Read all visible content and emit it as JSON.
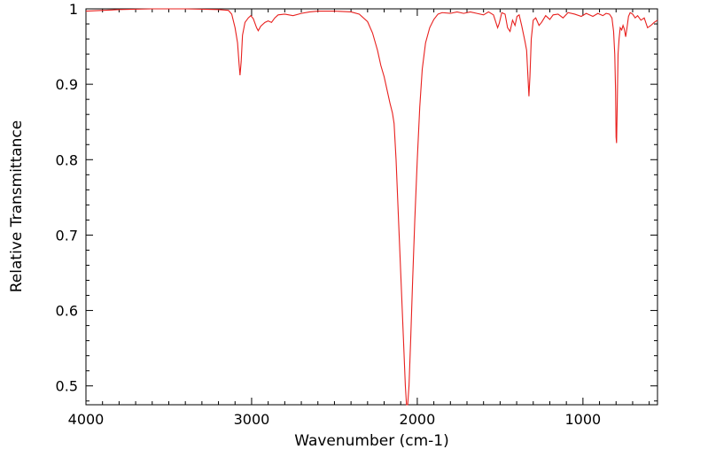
{
  "chart_data": {
    "type": "line",
    "title": "",
    "xlabel": "Wavenumber (cm-1)",
    "ylabel": "Relative Transmittance",
    "xlim": [
      4000,
      550
    ],
    "ylim": [
      0.475,
      1.0
    ],
    "x_reversed": true,
    "grid": false,
    "legend": "none",
    "x_ticks": [
      4000,
      3000,
      2000,
      1000
    ],
    "x_tick_labels": [
      "4000",
      "3000",
      "2000",
      "1000"
    ],
    "y_ticks": [
      0.5,
      0.6,
      0.7,
      0.8,
      0.9,
      1.0
    ],
    "y_tick_labels": [
      "0.5",
      "0.6",
      "0.7",
      "0.8",
      "0.9",
      "1"
    ],
    "series": [
      {
        "color": "#e8201e",
        "points": [
          [
            4000,
            0.997
          ],
          [
            3800,
            0.999
          ],
          [
            3600,
            1.0
          ],
          [
            3400,
            1.0
          ],
          [
            3200,
            0.999
          ],
          [
            3140,
            0.998
          ],
          [
            3120,
            0.993
          ],
          [
            3100,
            0.975
          ],
          [
            3085,
            0.955
          ],
          [
            3075,
            0.925
          ],
          [
            3070,
            0.912
          ],
          [
            3063,
            0.93
          ],
          [
            3055,
            0.965
          ],
          [
            3040,
            0.982
          ],
          [
            3020,
            0.988
          ],
          [
            3005,
            0.991
          ],
          [
            2990,
            0.987
          ],
          [
            2970,
            0.975
          ],
          [
            2960,
            0.971
          ],
          [
            2945,
            0.977
          ],
          [
            2920,
            0.982
          ],
          [
            2900,
            0.984
          ],
          [
            2880,
            0.982
          ],
          [
            2860,
            0.988
          ],
          [
            2840,
            0.992
          ],
          [
            2800,
            0.993
          ],
          [
            2750,
            0.991
          ],
          [
            2700,
            0.994
          ],
          [
            2650,
            0.996
          ],
          [
            2600,
            0.997
          ],
          [
            2500,
            0.997
          ],
          [
            2400,
            0.996
          ],
          [
            2350,
            0.993
          ],
          [
            2300,
            0.983
          ],
          [
            2270,
            0.968
          ],
          [
            2240,
            0.945
          ],
          [
            2220,
            0.925
          ],
          [
            2200,
            0.91
          ],
          [
            2180,
            0.89
          ],
          [
            2165,
            0.875
          ],
          [
            2150,
            0.862
          ],
          [
            2140,
            0.848
          ],
          [
            2128,
            0.8
          ],
          [
            2115,
            0.73
          ],
          [
            2100,
            0.65
          ],
          [
            2085,
            0.57
          ],
          [
            2072,
            0.5
          ],
          [
            2065,
            0.475
          ],
          [
            2058,
            0.475
          ],
          [
            2050,
            0.5
          ],
          [
            2040,
            0.56
          ],
          [
            2028,
            0.64
          ],
          [
            2015,
            0.72
          ],
          [
            2000,
            0.8
          ],
          [
            1985,
            0.87
          ],
          [
            1970,
            0.92
          ],
          [
            1950,
            0.955
          ],
          [
            1925,
            0.975
          ],
          [
            1900,
            0.986
          ],
          [
            1875,
            0.993
          ],
          [
            1850,
            0.995
          ],
          [
            1800,
            0.994
          ],
          [
            1760,
            0.996
          ],
          [
            1720,
            0.994
          ],
          [
            1680,
            0.996
          ],
          [
            1640,
            0.994
          ],
          [
            1600,
            0.992
          ],
          [
            1570,
            0.996
          ],
          [
            1540,
            0.992
          ],
          [
            1515,
            0.975
          ],
          [
            1505,
            0.981
          ],
          [
            1490,
            0.995
          ],
          [
            1470,
            0.993
          ],
          [
            1455,
            0.975
          ],
          [
            1440,
            0.97
          ],
          [
            1425,
            0.985
          ],
          [
            1410,
            0.978
          ],
          [
            1398,
            0.99
          ],
          [
            1385,
            0.992
          ],
          [
            1370,
            0.978
          ],
          [
            1350,
            0.957
          ],
          [
            1340,
            0.945
          ],
          [
            1332,
            0.91
          ],
          [
            1326,
            0.884
          ],
          [
            1320,
            0.91
          ],
          [
            1312,
            0.96
          ],
          [
            1300,
            0.985
          ],
          [
            1285,
            0.988
          ],
          [
            1265,
            0.978
          ],
          [
            1250,
            0.982
          ],
          [
            1225,
            0.991
          ],
          [
            1200,
            0.986
          ],
          [
            1180,
            0.992
          ],
          [
            1150,
            0.993
          ],
          [
            1120,
            0.988
          ],
          [
            1090,
            0.995
          ],
          [
            1050,
            0.993
          ],
          [
            1010,
            0.99
          ],
          [
            980,
            0.994
          ],
          [
            940,
            0.99
          ],
          [
            910,
            0.994
          ],
          [
            880,
            0.991
          ],
          [
            860,
            0.994
          ],
          [
            840,
            0.993
          ],
          [
            825,
            0.988
          ],
          [
            815,
            0.97
          ],
          [
            808,
            0.94
          ],
          [
            803,
            0.89
          ],
          [
            800,
            0.83
          ],
          [
            797,
            0.822
          ],
          [
            794,
            0.86
          ],
          [
            788,
            0.94
          ],
          [
            782,
            0.96
          ],
          [
            775,
            0.975
          ],
          [
            766,
            0.972
          ],
          [
            758,
            0.978
          ],
          [
            750,
            0.973
          ],
          [
            742,
            0.963
          ],
          [
            734,
            0.975
          ],
          [
            725,
            0.99
          ],
          [
            715,
            0.995
          ],
          [
            700,
            0.993
          ],
          [
            685,
            0.988
          ],
          [
            670,
            0.991
          ],
          [
            650,
            0.985
          ],
          [
            630,
            0.988
          ],
          [
            610,
            0.975
          ],
          [
            590,
            0.978
          ],
          [
            570,
            0.982
          ],
          [
            550,
            0.985
          ]
        ]
      }
    ]
  }
}
